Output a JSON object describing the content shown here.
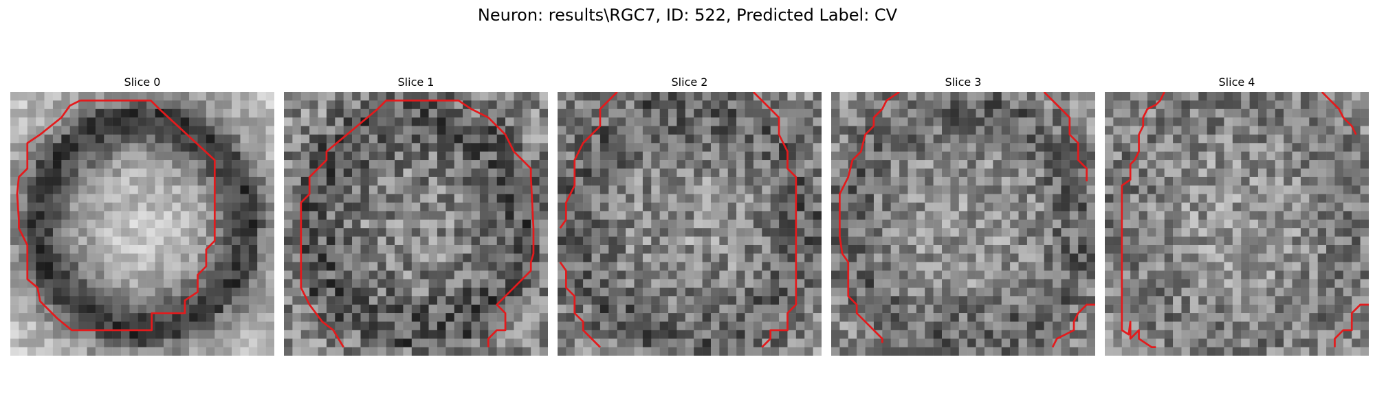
{
  "figure": {
    "title": "Neuron: results\\RGC7, ID: 522, Predicted Label: CV"
  },
  "panels": [
    {
      "title": "Slice 0"
    },
    {
      "title": "Slice 1"
    },
    {
      "title": "Slice 2"
    },
    {
      "title": "Slice 3"
    },
    {
      "title": "Slice 4"
    }
  ],
  "colors": {
    "contour": "#e41a1c",
    "colormap": "gray"
  }
}
